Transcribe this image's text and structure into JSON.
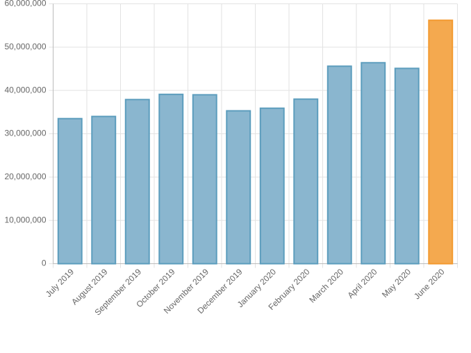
{
  "chart_data": {
    "type": "bar",
    "categories": [
      "July 2019",
      "August 2019",
      "September 2019",
      "October 2019",
      "November 2019",
      "December 2019",
      "January 2020",
      "February 2020",
      "March 2020",
      "April 2020",
      "May 2020",
      "June 2020"
    ],
    "values": [
      33500000,
      34000000,
      37900000,
      39100000,
      39000000,
      35300000,
      35900000,
      38000000,
      45600000,
      46400000,
      45100000,
      56200000
    ],
    "colors": [
      "#8ab6cf",
      "#8ab6cf",
      "#8ab6cf",
      "#8ab6cf",
      "#8ab6cf",
      "#8ab6cf",
      "#8ab6cf",
      "#8ab6cf",
      "#8ab6cf",
      "#8ab6cf",
      "#8ab6cf",
      "#f4a94f"
    ],
    "border_colors": [
      "#5c9dbd",
      "#5c9dbd",
      "#5c9dbd",
      "#5c9dbd",
      "#5c9dbd",
      "#5c9dbd",
      "#5c9dbd",
      "#5c9dbd",
      "#5c9dbd",
      "#5c9dbd",
      "#5c9dbd",
      "#f39a30"
    ],
    "ylim": [
      0,
      60000000
    ],
    "yticks": [
      0,
      {
        "value": 10000000,
        "label": "10,000,000"
      },
      {
        "value": 20000000,
        "label": "20,000,000"
      },
      {
        "value": 30000000,
        "label": "30,000,000"
      },
      {
        "value": 40000000,
        "label": "40,000,000"
      },
      {
        "value": 50000000,
        "label": "50,000,000"
      },
      {
        "value": 60000000,
        "label": "60,000,000"
      }
    ],
    "grid": true
  }
}
